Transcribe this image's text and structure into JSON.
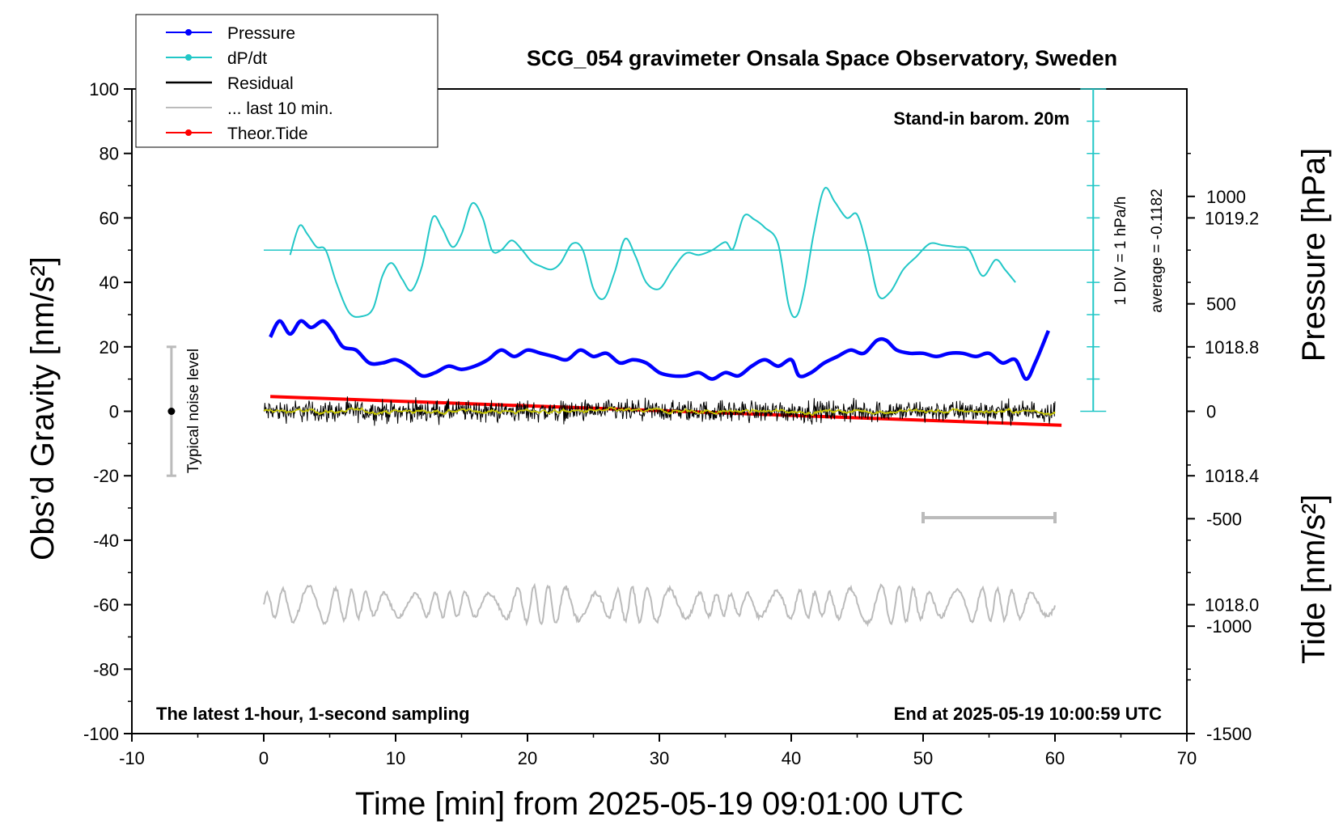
{
  "chart_data": {
    "type": "line",
    "title": "SCG_054 gravimeter Onsala Space Observatory, Sweden",
    "xlabel": "Time [min] from 2025-05-19 09:01:00 UTC",
    "ylabel_left": "Obs’d Gravity [nm/s²]",
    "ylabel_right_top": "Pressure [hPa]",
    "ylabel_right_bottom": "Tide [nm/s²]",
    "xlim": [
      -10,
      70
    ],
    "ylim_left": [
      -100,
      100
    ],
    "x_ticks": [
      "-10",
      "0",
      "10",
      "20",
      "30",
      "40",
      "50",
      "60",
      "70"
    ],
    "y_ticks_left": [
      "100",
      "80",
      "60",
      "40",
      "20",
      "0",
      "-20",
      "-40",
      "-60",
      "-80",
      "-100"
    ],
    "pressure_axis": {
      "ticks": [
        "1018.0",
        "1018.4",
        "1018.8",
        "1019.2"
      ],
      "range": [
        1017.6,
        1019.6
      ]
    },
    "tide_axis": {
      "ticks": [
        "1000",
        "500",
        "0",
        "-500",
        "-1000",
        "-1500"
      ],
      "range": [
        -1500,
        1500
      ]
    },
    "annotations": {
      "barometer": "Stand-in barom. 20m",
      "sampling": "The latest 1-hour, 1-second sampling",
      "end_time": "End at 2025-05-19 10:00:59 UTC",
      "div_scale": "1 DIV = 1 hPa/h",
      "average": "average = -0.1182",
      "noise": "Typical noise level"
    },
    "noise_bar": {
      "x": -7,
      "center": 0,
      "range": [
        -20,
        20
      ]
    },
    "last_10min_bar": {
      "x_range": [
        50,
        60
      ],
      "y": -33
    },
    "dpdt_baseline": 50,
    "legend": [
      {
        "label": "Pressure",
        "color": "#0000ff",
        "marker": true
      },
      {
        "label": "dP/dt",
        "color": "#22c7c7",
        "marker": true
      },
      {
        "label": "Residual",
        "color": "#000000",
        "marker": false
      },
      {
        "label": "... last 10 min.",
        "color": "#bbbbbb",
        "marker": false
      },
      {
        "label": "Theor.Tide",
        "color": "#ff0000",
        "marker": true
      }
    ],
    "series": [
      {
        "name": "Pressure",
        "color": "#0000ff",
        "axis": "pressure",
        "x": [
          0.5,
          1.2,
          2,
          2.8,
          3.6,
          4.5,
          5.2,
          6,
          7,
          8,
          9,
          10,
          11,
          12,
          13,
          14,
          15,
          16,
          17,
          18,
          19,
          20,
          21,
          22,
          23,
          24,
          25,
          26,
          27,
          28,
          29,
          30,
          31,
          32,
          33,
          34,
          35,
          36,
          37,
          38,
          39,
          40,
          40.6,
          41.5,
          42.5,
          43.5,
          44.5,
          45.5,
          46.5,
          47.2,
          48,
          49,
          50,
          51,
          52,
          53,
          54,
          55,
          56,
          57,
          57.8,
          58.5,
          59.5
        ],
        "values": [
          1018.83,
          1018.88,
          1018.84,
          1018.88,
          1018.86,
          1018.88,
          1018.85,
          1018.8,
          1018.79,
          1018.75,
          1018.75,
          1018.76,
          1018.74,
          1018.71,
          1018.72,
          1018.74,
          1018.73,
          1018.74,
          1018.76,
          1018.79,
          1018.77,
          1018.79,
          1018.78,
          1018.77,
          1018.76,
          1018.79,
          1018.77,
          1018.78,
          1018.75,
          1018.76,
          1018.75,
          1018.72,
          1018.71,
          1018.71,
          1018.72,
          1018.7,
          1018.72,
          1018.71,
          1018.74,
          1018.76,
          1018.74,
          1018.76,
          1018.71,
          1018.72,
          1018.75,
          1018.77,
          1018.79,
          1018.78,
          1018.82,
          1018.82,
          1018.79,
          1018.78,
          1018.78,
          1018.77,
          1018.78,
          1018.78,
          1018.77,
          1018.78,
          1018.75,
          1018.76,
          1018.7,
          1018.75,
          1018.85
        ]
      },
      {
        "name": "dP/dt",
        "color": "#22c7c7",
        "axis": "left",
        "x": [
          2,
          2.7,
          3.3,
          4,
          4.7,
          5.5,
          6.5,
          7.5,
          8.3,
          9,
          9.7,
          10.5,
          11.2,
          12,
          12.8,
          13.5,
          14.3,
          15,
          15.8,
          16.6,
          17.3,
          18,
          18.8,
          19.6,
          20.3,
          21,
          21.8,
          22.5,
          23.4,
          24.2,
          25,
          25.8,
          26.6,
          27.4,
          28.2,
          29,
          30,
          31,
          32,
          33,
          34,
          35,
          35.6,
          36.4,
          37.2,
          38,
          39,
          39.8,
          40.4,
          41,
          41.7,
          42.5,
          43.3,
          44.2,
          45,
          45.8,
          46.6,
          47.5,
          48.5,
          49.5,
          50.5,
          51.5,
          52.5,
          53.5,
          54.5,
          55.5,
          56.2,
          57
        ],
        "values": [
          48.5,
          57.5,
          55,
          51,
          50,
          40,
          30.5,
          29.5,
          32,
          42,
          46,
          41,
          37.5,
          45,
          60,
          57,
          51,
          55,
          64.5,
          60,
          50,
          50,
          53,
          50,
          46.5,
          45,
          44,
          46,
          52,
          50,
          38,
          35,
          43,
          53.5,
          48,
          40,
          38,
          44,
          49,
          48.5,
          50,
          52.5,
          50.5,
          60.5,
          59.5,
          57,
          52,
          33,
          29.5,
          38,
          55,
          69,
          65,
          60,
          61,
          50,
          36,
          37,
          44,
          48,
          52,
          51.5,
          51,
          50,
          42,
          47,
          44,
          40
        ]
      },
      {
        "name": "Residual",
        "color": "#000000",
        "axis": "left",
        "x_range": [
          0,
          60
        ],
        "amplitude": 5
      },
      {
        "name": "Residual (smoothed)",
        "color": "#c8c800",
        "axis": "left",
        "x_range": [
          0,
          60
        ],
        "amplitude": 1.2
      },
      {
        "name": "... last 10 min.",
        "color": "#bbbbbb",
        "axis": "left",
        "x_range": [
          0,
          60
        ],
        "offset": -60,
        "amplitude": 6
      },
      {
        "name": "Theor.Tide",
        "color": "#ff0000",
        "axis": "tide",
        "x": [
          0.5,
          60.5
        ],
        "values": [
          69,
          -65
        ]
      }
    ]
  }
}
